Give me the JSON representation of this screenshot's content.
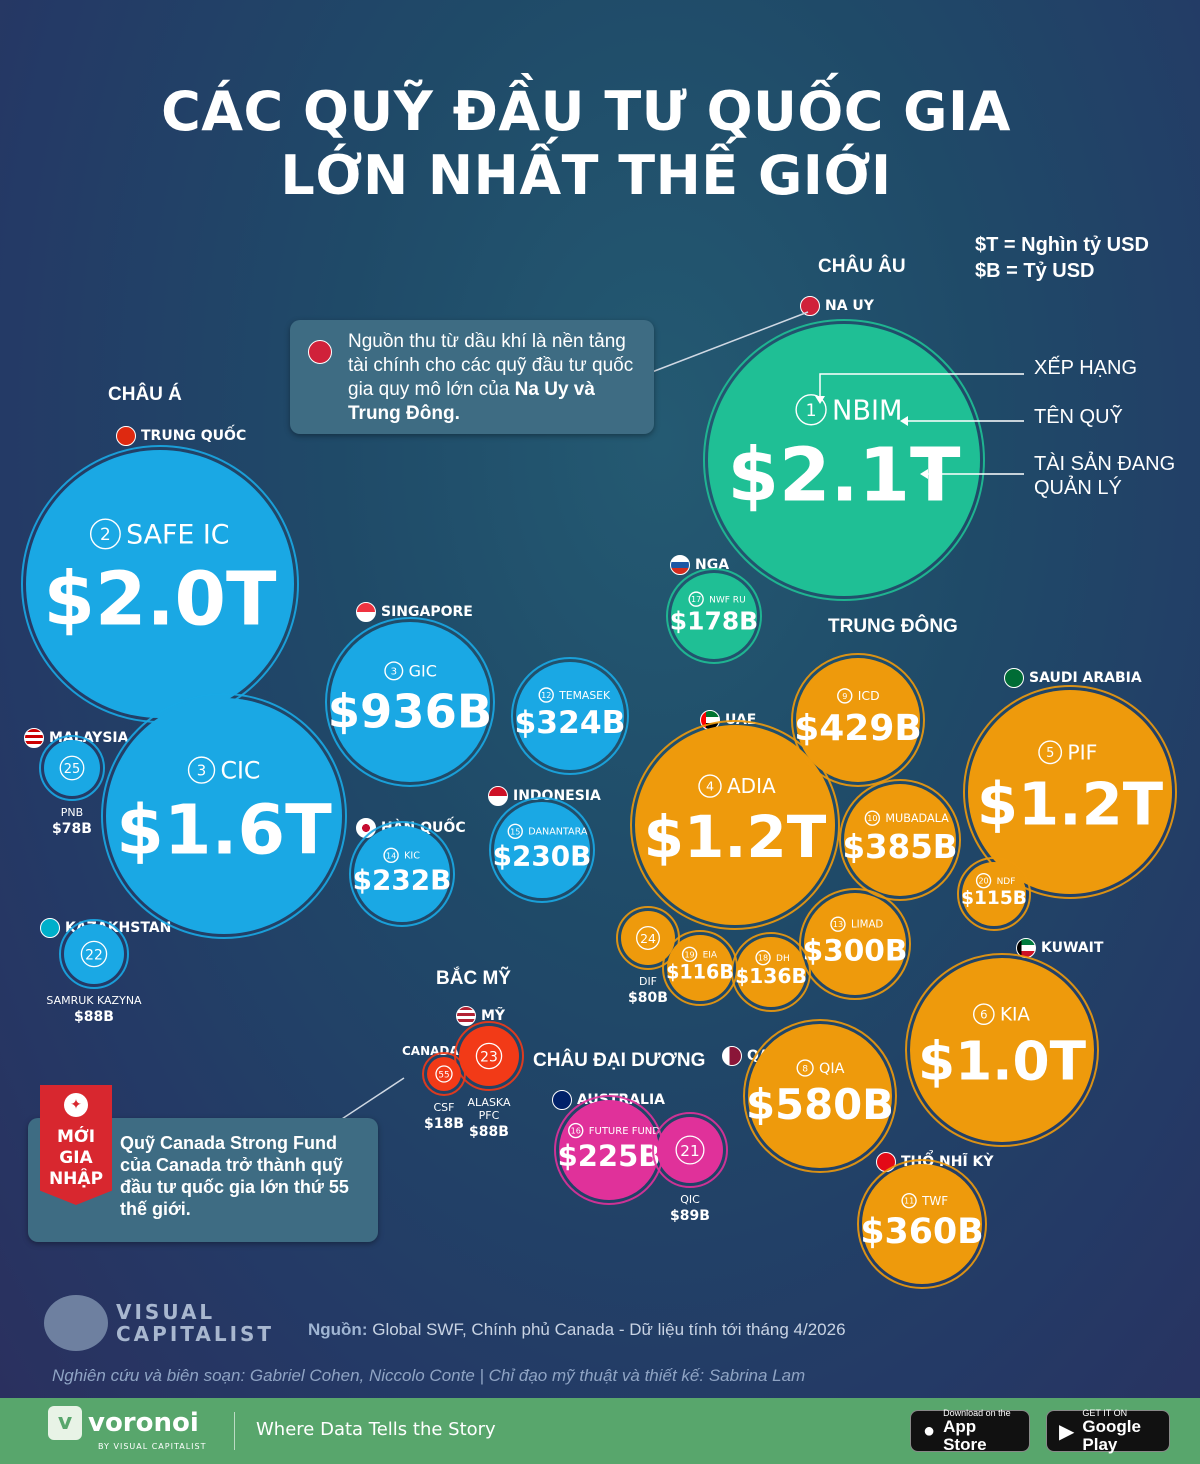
{
  "title": {
    "line1": "CÁC QUỸ ĐẦU TƯ QUỐC GIA",
    "line2": "LỚN NHẤT THẾ GIỚI"
  },
  "legend_key": {
    "t": "$T = Nghìn tỷ USD",
    "b": "$B = Tỷ USD"
  },
  "regions": {
    "europe": "CHÂU ÂU",
    "asia": "CHÂU Á",
    "middle_east": "TRUNG ĐÔNG",
    "north_america": "BẮC MỸ",
    "oceania": "CHÂU ĐẠI DƯƠNG"
  },
  "countries": {
    "norway": "NA UY",
    "china": "TRUNG QUỐC",
    "russia": "NGA",
    "singapore": "SINGAPORE",
    "malaysia": "MALAYSIA",
    "south_korea": "HÀN QUỐC",
    "indonesia": "INDONESIA",
    "kazakhstan": "KAZAKHSTAN",
    "uae": "UAE",
    "saudi_arabia": "SAUDI ARABIA",
    "kuwait": "KUWAIT",
    "qatar": "QATAR",
    "turkey": "THỔ NHĨ KỲ",
    "usa": "MỸ",
    "canada": "CANADA",
    "australia": "AUSTRALIA"
  },
  "annotations": {
    "rank": "XẾP HẠNG",
    "fund_name": "TÊN QUỸ",
    "aum_line1": "TÀI SẢN ĐANG",
    "aum_line2": "QUẢN LÝ"
  },
  "notes": {
    "oil": "Nguồn thu từ dầu khí là nền tảng tài chính cho các quỹ đầu tư quốc gia quy mô lớn của",
    "oil_bold": "Na Uy và Trung Đông.",
    "canada": "Quỹ Canada Strong Fund của Canada trở thành quỹ đầu tư quốc gia lớn thứ 55 thế giới."
  },
  "badge": {
    "line1": "MỚI",
    "line2": "GIA",
    "line3": "NHẬP"
  },
  "source_label": "Nguồn:",
  "source_text": "Global SWF, Chính phủ Canada - Dữ liệu tính tới tháng 4/2026",
  "credits": "Nghiên cứu và biên soạn: Gabriel Cohen, Niccolo Conte | Chỉ đạo mỹ thuật và thiết kế: Sabrina Lam",
  "vc_logo": {
    "line1": "VISUAL",
    "line2": "CAPITALIST"
  },
  "footer": {
    "brand": "voronoi",
    "by": "BY VISUAL CAPITALIST",
    "tagline": "Where Data Tells the Story",
    "appstore_small": "Download on the",
    "appstore_big": "App Store",
    "gplay_small": "GET IT ON",
    "gplay_big": "Google Play"
  },
  "colors": {
    "europe": "#1fbf95",
    "asia": "#1aa8e4",
    "middle_east": "#ee9a0c",
    "north_america": "#f23a17",
    "oceania": "#e0319a"
  },
  "chart_data": {
    "type": "bubble",
    "unit_note": "$T = Nghìn tỷ USD; $B = Tỷ USD",
    "funds": [
      {
        "rank": 1,
        "name": "NBIM",
        "country": "NA UY",
        "region": "europe",
        "value_usd_b": 2100,
        "label": "$2.1T"
      },
      {
        "rank": 2,
        "name": "SAFE IC",
        "country": "TRUNG QUỐC",
        "region": "asia",
        "value_usd_b": 2000,
        "label": "$2.0T"
      },
      {
        "rank": 3,
        "name": "CIC",
        "country": "TRUNG QUỐC",
        "region": "asia",
        "value_usd_b": 1600,
        "label": "$1.6T"
      },
      {
        "rank": 3,
        "name": "GIC",
        "country": "SINGAPORE",
        "region": "asia",
        "value_usd_b": 936,
        "label": "$936B"
      },
      {
        "rank": 12,
        "name": "TEMASEK",
        "country": "SINGAPORE",
        "region": "asia",
        "value_usd_b": 324,
        "label": "$324B"
      },
      {
        "rank": 25,
        "name": "PNB",
        "country": "MALAYSIA",
        "region": "asia",
        "value_usd_b": 78,
        "label": "$78B"
      },
      {
        "rank": 14,
        "name": "KIC",
        "country": "HÀN QUỐC",
        "region": "asia",
        "value_usd_b": 232,
        "label": "$232B"
      },
      {
        "rank": 15,
        "name": "DANANTARA",
        "country": "INDONESIA",
        "region": "asia",
        "value_usd_b": 230,
        "label": "$230B"
      },
      {
        "rank": 22,
        "name": "SAMRUK KAZYNA",
        "country": "KAZAKHSTAN",
        "region": "asia",
        "value_usd_b": 88,
        "label": "$88B"
      },
      {
        "rank": 17,
        "name": "NWF RU",
        "country": "NGA",
        "region": "europe",
        "value_usd_b": 178,
        "label": "$178B"
      },
      {
        "rank": 4,
        "name": "ADIA",
        "country": "UAE",
        "region": "middle_east",
        "value_usd_b": 1200,
        "label": "$1.2T"
      },
      {
        "rank": 9,
        "name": "ICD",
        "country": "UAE",
        "region": "middle_east",
        "value_usd_b": 429,
        "label": "$429B"
      },
      {
        "rank": 10,
        "name": "MUBADALA",
        "country": "UAE",
        "region": "middle_east",
        "value_usd_b": 385,
        "label": "$385B"
      },
      {
        "rank": 13,
        "name": "LIMAD",
        "country": "UAE",
        "region": "middle_east",
        "value_usd_b": 300,
        "label": "$300B"
      },
      {
        "rank": 18,
        "name": "DH",
        "country": "UAE",
        "region": "middle_east",
        "value_usd_b": 136,
        "label": "$136B"
      },
      {
        "rank": 19,
        "name": "EIA",
        "country": "UAE",
        "region": "middle_east",
        "value_usd_b": 116,
        "label": "$116B"
      },
      {
        "rank": 24,
        "name": "DIF",
        "country": "UAE",
        "region": "middle_east",
        "value_usd_b": 80,
        "label": "$80B"
      },
      {
        "rank": 5,
        "name": "PIF",
        "country": "SAUDI ARABIA",
        "region": "middle_east",
        "value_usd_b": 1200,
        "label": "$1.2T"
      },
      {
        "rank": 20,
        "name": "NDF",
        "country": "SAUDI ARABIA",
        "region": "middle_east",
        "value_usd_b": 115,
        "label": "$115B"
      },
      {
        "rank": 6,
        "name": "KIA",
        "country": "KUWAIT",
        "region": "middle_east",
        "value_usd_b": 1000,
        "label": "$1.0T"
      },
      {
        "rank": 8,
        "name": "QIA",
        "country": "QATAR",
        "region": "middle_east",
        "value_usd_b": 580,
        "label": "$580B"
      },
      {
        "rank": 11,
        "name": "TWF",
        "country": "THỔ NHĨ KỲ",
        "region": "middle_east",
        "value_usd_b": 360,
        "label": "$360B"
      },
      {
        "rank": 23,
        "name": "ALASKA PFC",
        "country": "MỸ",
        "region": "north_america",
        "value_usd_b": 88,
        "label": "$88B"
      },
      {
        "rank": 55,
        "name": "CSF",
        "country": "CANADA",
        "region": "north_america",
        "value_usd_b": 18,
        "label": "$18B"
      },
      {
        "rank": 16,
        "name": "FUTURE FUND",
        "country": "AUSTRALIA",
        "region": "oceania",
        "value_usd_b": 225,
        "label": "$225B"
      },
      {
        "rank": 21,
        "name": "QIC",
        "country": "AUSTRALIA",
        "region": "oceania",
        "value_usd_b": 89,
        "label": "$89B"
      }
    ]
  }
}
